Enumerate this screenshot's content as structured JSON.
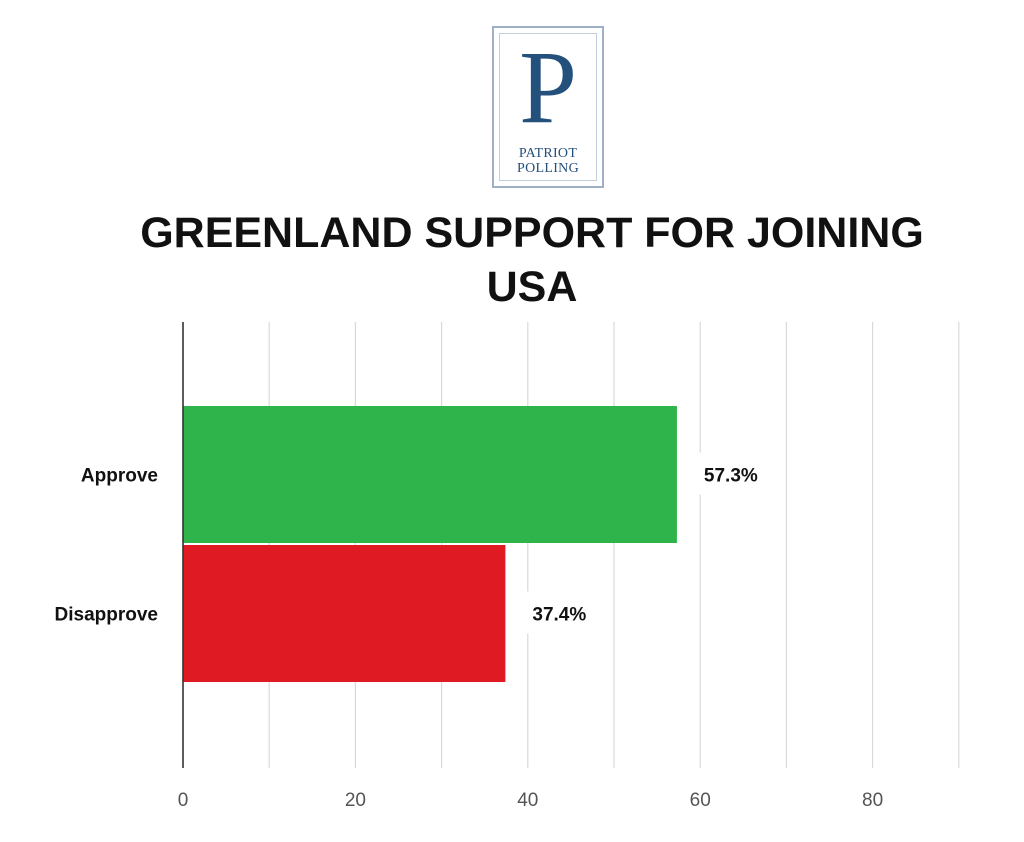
{
  "logo": {
    "letter": "P",
    "line1": "PATRIOT",
    "line2": "POLLING",
    "color": "#24507c"
  },
  "chart_data": {
    "type": "bar",
    "orientation": "horizontal",
    "title_line1": "GREENLAND SUPPORT FOR JOINING",
    "title_line2": "USA",
    "categories": [
      "Approve",
      "Disapprove"
    ],
    "values": [
      57.3,
      37.4
    ],
    "value_labels": [
      "57.3%",
      "37.4%"
    ],
    "colors": [
      "#2fb44b",
      "#e01a23"
    ],
    "xlim": [
      0,
      90
    ],
    "xticks": [
      0,
      20,
      40,
      60,
      80
    ],
    "xtick_labels": [
      "0",
      "20",
      "40",
      "60",
      "80"
    ],
    "minor_grid_step": 10,
    "grid": true,
    "xlabel": "",
    "ylabel": ""
  }
}
